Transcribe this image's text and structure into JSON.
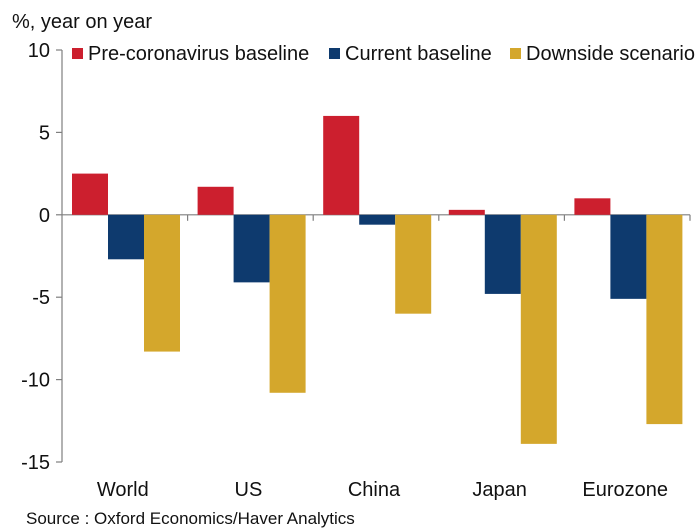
{
  "chart_data": {
    "type": "bar",
    "ylabel": "%, year on year",
    "ylim": [
      -15,
      10
    ],
    "yticks": [
      10,
      5,
      0,
      -5,
      -10,
      -15
    ],
    "categories": [
      "World",
      "US",
      "China",
      "Japan",
      "Eurozone"
    ],
    "series": [
      {
        "name": "Pre-coronavirus baseline",
        "color": "#cc1f2e",
        "values": [
          2.5,
          1.7,
          6.0,
          0.3,
          1.0
        ]
      },
      {
        "name": "Current baseline",
        "color": "#0e3a6e",
        "values": [
          -2.7,
          -4.1,
          -0.6,
          -4.8,
          -5.1
        ]
      },
      {
        "name": "Downside scenario",
        "color": "#d4a72c",
        "values": [
          -8.3,
          -10.8,
          -6.0,
          -13.9,
          -12.7
        ]
      }
    ],
    "legend_position": "top",
    "grid": false,
    "source": "Source : Oxford Economics/Haver Analytics"
  }
}
